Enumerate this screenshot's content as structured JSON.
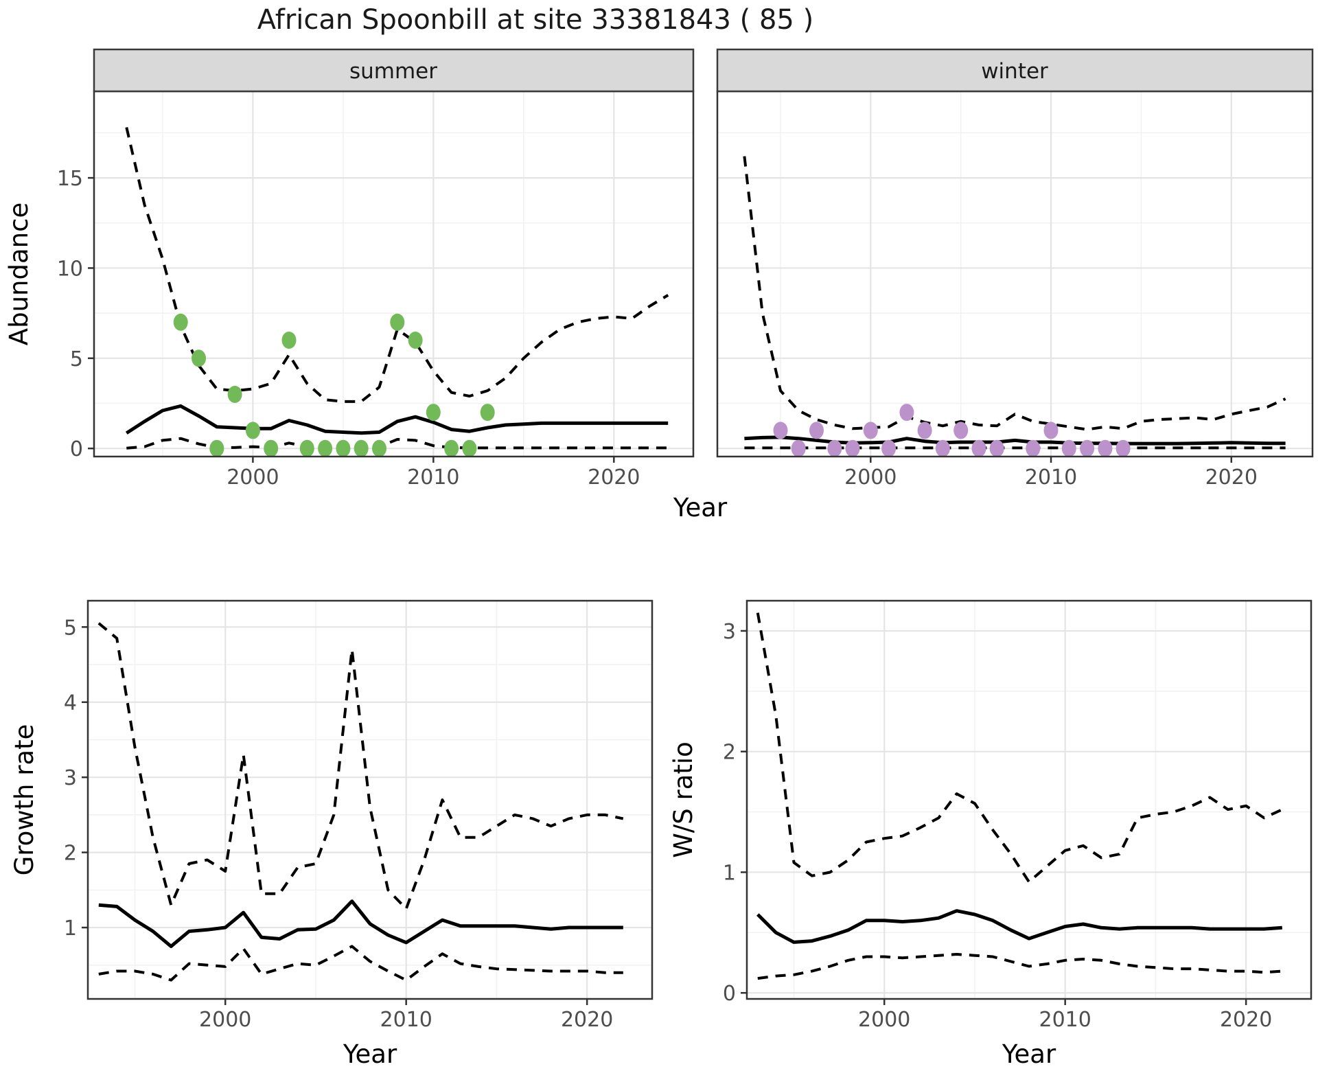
{
  "title": "African Spoonbill at site 33381843 ( 85 )",
  "colors": {
    "summer_point": "#72ba58",
    "winter_point": "#bb92c9",
    "line": "#000000",
    "strip_fill": "#d9d9d9",
    "panel_border": "#333333",
    "grid_major": "#e4e4e4",
    "grid_minor": "#f1f1f1",
    "axis_text": "#4d4d4d"
  },
  "chart_data": [
    {
      "id": "abundance_summer",
      "type": "line",
      "facet": "summer",
      "ylabel": "Abundance",
      "xlabel": "Year",
      "xlim": [
        1991.2,
        2024.4
      ],
      "ylim": [
        -0.45,
        19.8
      ],
      "x_ticks": [
        2000,
        2010,
        2020
      ],
      "x_minor": [
        1995,
        2005,
        2015
      ],
      "y_ticks": [
        0,
        5,
        10,
        15
      ],
      "y_minor": [
        2.5,
        7.5,
        12.5,
        17.5
      ],
      "line_years": [
        1993,
        1994,
        1995,
        1996,
        1997,
        1998,
        1999,
        2000,
        2001,
        2002,
        2003,
        2004,
        2005,
        2006,
        2007,
        2008,
        2009,
        2010,
        2011,
        2012,
        2013,
        2014,
        2015,
        2016,
        2017,
        2018,
        2019,
        2020,
        2021,
        2022,
        2023
      ],
      "series": [
        {
          "name": "upper_95ci",
          "style": "dashed",
          "values": [
            17.8,
            13.5,
            10.5,
            6.8,
            4.6,
            3.3,
            3.2,
            3.3,
            3.6,
            5.2,
            3.6,
            2.7,
            2.6,
            2.6,
            3.4,
            6.6,
            5.9,
            4.3,
            3.1,
            2.9,
            3.2,
            3.9,
            5.0,
            5.9,
            6.6,
            7.0,
            7.2,
            7.3,
            7.2,
            7.9,
            8.5
          ]
        },
        {
          "name": "median",
          "style": "solid",
          "values": [
            0.85,
            1.5,
            2.1,
            2.35,
            1.8,
            1.2,
            1.15,
            1.1,
            1.1,
            1.55,
            1.3,
            0.95,
            0.9,
            0.85,
            0.9,
            1.5,
            1.75,
            1.45,
            1.05,
            0.95,
            1.15,
            1.3,
            1.35,
            1.4,
            1.4,
            1.4,
            1.4,
            1.4,
            1.4,
            1.4,
            1.4
          ]
        },
        {
          "name": "lower_95ci",
          "style": "dashed",
          "values": [
            0.02,
            0.1,
            0.45,
            0.55,
            0.25,
            0.05,
            0.05,
            0.1,
            0.05,
            0.3,
            0.1,
            0.03,
            0.03,
            0.05,
            0.1,
            0.5,
            0.45,
            0.15,
            0.05,
            0.03,
            0.03,
            0.03,
            0.03,
            0.03,
            0.03,
            0.03,
            0.03,
            0.03,
            0.03,
            0.03,
            0.03
          ]
        }
      ],
      "points": {
        "name": "observed-counts-summer",
        "color": "#72ba58",
        "data": [
          [
            1996,
            7
          ],
          [
            1997,
            5
          ],
          [
            1998,
            0
          ],
          [
            1999,
            3
          ],
          [
            2000,
            1
          ],
          [
            2001,
            0
          ],
          [
            2002,
            6
          ],
          [
            2003,
            0
          ],
          [
            2004,
            0
          ],
          [
            2005,
            0
          ],
          [
            2006,
            0
          ],
          [
            2007,
            0
          ],
          [
            2008,
            7
          ],
          [
            2009,
            6
          ],
          [
            2010,
            2
          ],
          [
            2011,
            0
          ],
          [
            2012,
            0
          ],
          [
            2013,
            2
          ]
        ]
      }
    },
    {
      "id": "abundance_winter",
      "type": "line",
      "facet": "winter",
      "ylabel": "Abundance",
      "xlabel": "Year",
      "xlim": [
        1991.5,
        2024.5
      ],
      "ylim": [
        -0.45,
        19.8
      ],
      "x_ticks": [
        2000,
        2010,
        2020
      ],
      "x_minor": [
        1995,
        2005,
        2015
      ],
      "y_ticks": [
        0,
        5,
        10,
        15
      ],
      "y_minor": [
        2.5,
        7.5,
        12.5,
        17.5
      ],
      "line_years": [
        1993,
        1994,
        1995,
        1996,
        1997,
        1998,
        1999,
        2000,
        2001,
        2002,
        2003,
        2004,
        2005,
        2006,
        2007,
        2008,
        2009,
        2010,
        2011,
        2012,
        2013,
        2014,
        2015,
        2016,
        2017,
        2018,
        2019,
        2020,
        2021,
        2022,
        2023
      ],
      "series": [
        {
          "name": "upper_95ci",
          "style": "dashed",
          "values": [
            16.2,
            7.5,
            3.2,
            2.1,
            1.6,
            1.3,
            1.1,
            1.15,
            1.2,
            1.75,
            1.45,
            1.25,
            1.5,
            1.3,
            1.25,
            1.9,
            1.5,
            1.35,
            1.2,
            1.05,
            1.2,
            1.1,
            1.5,
            1.6,
            1.65,
            1.7,
            1.6,
            1.9,
            2.1,
            2.3,
            2.75
          ]
        },
        {
          "name": "median",
          "style": "solid",
          "values": [
            0.55,
            0.6,
            0.62,
            0.55,
            0.45,
            0.35,
            0.3,
            0.32,
            0.35,
            0.55,
            0.4,
            0.32,
            0.35,
            0.35,
            0.35,
            0.45,
            0.35,
            0.35,
            0.3,
            0.28,
            0.28,
            0.27,
            0.27,
            0.27,
            0.27,
            0.28,
            0.3,
            0.32,
            0.3,
            0.28,
            0.28
          ]
        },
        {
          "name": "lower_95ci",
          "style": "dashed",
          "values": [
            0.03,
            0.03,
            0.03,
            0.03,
            0.03,
            0.03,
            0.03,
            0.03,
            0.03,
            0.03,
            0.03,
            0.03,
            0.03,
            0.03,
            0.03,
            0.03,
            0.03,
            0.03,
            0.03,
            0.03,
            0.03,
            0.03,
            0.03,
            0.03,
            0.03,
            0.03,
            0.03,
            0.03,
            0.03,
            0.03,
            0.03
          ]
        }
      ],
      "points": {
        "name": "observed-counts-winter",
        "color": "#bb92c9",
        "data": [
          [
            1995,
            1
          ],
          [
            1996,
            0
          ],
          [
            1997,
            1
          ],
          [
            1998,
            0
          ],
          [
            1999,
            0
          ],
          [
            2000,
            1
          ],
          [
            2001,
            0
          ],
          [
            2002,
            2
          ],
          [
            2003,
            1
          ],
          [
            2004,
            0
          ],
          [
            2005,
            1
          ],
          [
            2006,
            0
          ],
          [
            2007,
            0
          ],
          [
            2009,
            0
          ],
          [
            2010,
            1
          ],
          [
            2011,
            0
          ],
          [
            2012,
            0
          ],
          [
            2013,
            0
          ],
          [
            2014,
            0
          ]
        ]
      }
    },
    {
      "id": "growth_rate",
      "type": "line",
      "ylabel": "Growth rate",
      "xlabel": "Year",
      "xlim": [
        1992.4,
        2023.6
      ],
      "ylim": [
        0.05,
        5.35
      ],
      "x_ticks": [
        2000,
        2010,
        2020
      ],
      "x_minor": [
        1995,
        2005,
        2015
      ],
      "y_ticks": [
        1,
        2,
        3,
        4,
        5
      ],
      "y_minor": [
        0.5,
        1.5,
        2.5,
        3.5,
        4.5
      ],
      "line_years": [
        1993,
        1994,
        1995,
        1996,
        1997,
        1998,
        1999,
        2000,
        2001,
        2002,
        2003,
        2004,
        2005,
        2006,
        2007,
        2008,
        2009,
        2010,
        2011,
        2012,
        2013,
        2014,
        2015,
        2016,
        2017,
        2018,
        2019,
        2020,
        2021,
        2022
      ],
      "series": [
        {
          "name": "upper_95ci",
          "style": "dashed",
          "values": [
            5.05,
            4.85,
            3.4,
            2.2,
            1.3,
            1.85,
            1.9,
            1.75,
            3.3,
            1.45,
            1.45,
            1.8,
            1.85,
            2.5,
            4.7,
            2.6,
            1.5,
            1.25,
            1.9,
            2.7,
            2.2,
            2.2,
            2.35,
            2.5,
            2.45,
            2.35,
            2.45,
            2.5,
            2.5,
            2.45
          ]
        },
        {
          "name": "median",
          "style": "solid",
          "values": [
            1.3,
            1.28,
            1.1,
            0.95,
            0.75,
            0.95,
            0.97,
            1.0,
            1.2,
            0.87,
            0.85,
            0.97,
            0.98,
            1.1,
            1.35,
            1.05,
            0.9,
            0.8,
            0.95,
            1.1,
            1.02,
            1.02,
            1.02,
            1.02,
            1.0,
            0.98,
            1.0,
            1.0,
            1.0,
            1.0
          ]
        },
        {
          "name": "lower_95ci",
          "style": "dashed",
          "values": [
            0.38,
            0.42,
            0.42,
            0.38,
            0.3,
            0.52,
            0.5,
            0.48,
            0.72,
            0.38,
            0.45,
            0.52,
            0.5,
            0.62,
            0.75,
            0.55,
            0.42,
            0.3,
            0.48,
            0.65,
            0.52,
            0.48,
            0.45,
            0.44,
            0.43,
            0.42,
            0.42,
            0.42,
            0.4,
            0.4
          ]
        }
      ]
    },
    {
      "id": "ws_ratio",
      "type": "line",
      "ylabel": "W/S ratio",
      "xlabel": "Year",
      "xlim": [
        1992.4,
        2023.6
      ],
      "ylim": [
        -0.05,
        3.25
      ],
      "x_ticks": [
        2000,
        2010,
        2020
      ],
      "x_minor": [
        1995,
        2005,
        2015
      ],
      "y_ticks": [
        0,
        1,
        2,
        3
      ],
      "y_minor": [
        0.5,
        1.5,
        2.5
      ],
      "line_years": [
        1993,
        1994,
        1995,
        1996,
        1997,
        1998,
        1999,
        2000,
        2001,
        2002,
        2003,
        2004,
        2005,
        2006,
        2007,
        2008,
        2009,
        2010,
        2011,
        2012,
        2013,
        2014,
        2015,
        2016,
        2017,
        2018,
        2019,
        2020,
        2021,
        2022
      ],
      "series": [
        {
          "name": "upper_95ci",
          "style": "dashed",
          "values": [
            3.15,
            2.3,
            1.08,
            0.97,
            1.0,
            1.1,
            1.25,
            1.28,
            1.3,
            1.37,
            1.45,
            1.65,
            1.57,
            1.35,
            1.15,
            0.92,
            1.05,
            1.18,
            1.22,
            1.12,
            1.15,
            1.45,
            1.48,
            1.5,
            1.55,
            1.62,
            1.52,
            1.55,
            1.45,
            1.52
          ]
        },
        {
          "name": "median",
          "style": "solid",
          "values": [
            0.65,
            0.5,
            0.42,
            0.43,
            0.47,
            0.52,
            0.6,
            0.6,
            0.59,
            0.6,
            0.62,
            0.68,
            0.65,
            0.6,
            0.52,
            0.45,
            0.5,
            0.55,
            0.57,
            0.54,
            0.53,
            0.54,
            0.54,
            0.54,
            0.54,
            0.53,
            0.53,
            0.53,
            0.53,
            0.54
          ]
        },
        {
          "name": "lower_95ci",
          "style": "dashed",
          "values": [
            0.12,
            0.14,
            0.15,
            0.18,
            0.22,
            0.27,
            0.3,
            0.3,
            0.29,
            0.3,
            0.31,
            0.32,
            0.31,
            0.3,
            0.26,
            0.22,
            0.24,
            0.27,
            0.28,
            0.27,
            0.24,
            0.22,
            0.21,
            0.2,
            0.2,
            0.19,
            0.18,
            0.18,
            0.17,
            0.18
          ]
        }
      ]
    }
  ]
}
